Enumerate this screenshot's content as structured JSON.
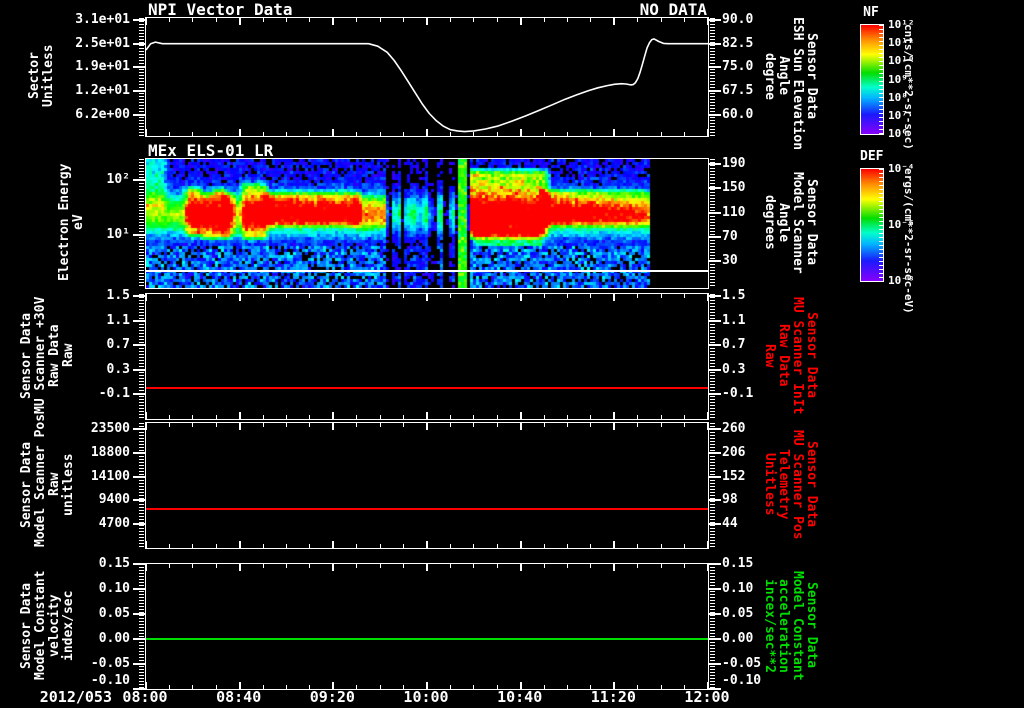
{
  "colors": {
    "background": "#000000",
    "foreground": "#ffffff",
    "red": "#ff0000",
    "green": "#00dd00",
    "rainbow_stops": [
      {
        "c": "#ff0000",
        "p": 0
      },
      {
        "c": "#ff8800",
        "p": 13
      },
      {
        "c": "#ffff00",
        "p": 27
      },
      {
        "c": "#00dd00",
        "p": 44
      },
      {
        "c": "#00ffcc",
        "p": 57
      },
      {
        "c": "#00b4ff",
        "p": 67
      },
      {
        "c": "#1a1aff",
        "p": 82
      },
      {
        "c": "#8800ff",
        "p": 100
      }
    ]
  },
  "xaxis": {
    "date_label": "2012/053",
    "t_start_min": 0,
    "t_end_min": 240,
    "major_tick_min": 40,
    "minor_tick_min": 10,
    "tick_labels": [
      "08:00",
      "08:40",
      "09:20",
      "10:00",
      "10:40",
      "11:20",
      "12:00"
    ]
  },
  "colorbars": [
    {
      "title": "NF",
      "tick_labels": [
        "10¹²",
        "10¹¹",
        "10¹⁰",
        "10⁹",
        "10⁸",
        "10⁷",
        "10⁶"
      ],
      "units": "cnts/(cm**2-sr-sec)"
    },
    {
      "title": "DEF",
      "tick_labels": [
        "10⁻⁴",
        "10⁻⁶",
        "10⁻⁸"
      ],
      "units": "ergs/(cm**2-sr-sec-eV)"
    }
  ],
  "chart_data": [
    {
      "type": "line",
      "title": "NPI Vector Data",
      "no_data_label": "NO DATA",
      "left_label_lines": [
        "Sector",
        "Unitless"
      ],
      "right_label_lines": [
        "Sensor Data",
        "ESH Sun Elevation",
        "Angle",
        "degree"
      ],
      "right_label_color": "#ffffff",
      "left_axis": {
        "min": 0.75,
        "max": 31.75,
        "ticks": [
          {
            "label": "3.1e+01",
            "v": 31.25
          },
          {
            "label": "2.5e+01",
            "v": 25
          },
          {
            "label": "1.9e+01",
            "v": 18.75
          },
          {
            "label": "1.2e+01",
            "v": 12.5
          },
          {
            "label": "6.2e+00",
            "v": 6.25
          }
        ]
      },
      "right_axis": {
        "min": 53.4,
        "max": 90.6,
        "ticks": [
          {
            "label": "90.0",
            "v": 90
          },
          {
            "label": "82.5",
            "v": 82.5
          },
          {
            "label": "75.0",
            "v": 75
          },
          {
            "label": "67.5",
            "v": 67.5
          },
          {
            "label": "60.0",
            "v": 60
          }
        ]
      },
      "series": {
        "name": "sun-elevation-angle",
        "color": "#ffffff",
        "x_unit": "minutes after 08:00",
        "y_axis": "right",
        "points": [
          [
            0,
            80.5
          ],
          [
            2,
            82.5
          ],
          [
            4,
            83.0
          ],
          [
            7,
            82.5
          ],
          [
            95,
            82.5
          ],
          [
            99,
            81.7
          ],
          [
            103,
            79.8
          ],
          [
            106,
            77.2
          ],
          [
            109,
            74.0
          ],
          [
            112,
            70.5
          ],
          [
            115,
            67.0
          ],
          [
            118,
            63.5
          ],
          [
            121,
            60.5
          ],
          [
            124,
            58.2
          ],
          [
            127,
            56.5
          ],
          [
            130,
            55.4
          ],
          [
            133,
            55.0
          ],
          [
            136,
            54.8
          ],
          [
            140,
            55.0
          ],
          [
            145,
            55.6
          ],
          [
            150,
            56.5
          ],
          [
            156,
            58.0
          ],
          [
            162,
            59.7
          ],
          [
            168,
            61.5
          ],
          [
            174,
            63.4
          ],
          [
            179,
            65.0
          ],
          [
            184,
            66.4
          ],
          [
            189,
            67.7
          ],
          [
            193,
            68.6
          ],
          [
            197,
            69.3
          ],
          [
            200,
            69.7
          ],
          [
            203,
            69.9
          ],
          [
            205,
            69.8
          ],
          [
            207,
            69.5
          ],
          [
            208,
            69.6
          ],
          [
            209,
            70.2
          ],
          [
            210,
            71.5
          ],
          [
            211,
            73.5
          ],
          [
            212,
            76.0
          ],
          [
            213,
            78.7
          ],
          [
            214,
            81.2
          ],
          [
            215,
            82.8
          ],
          [
            216,
            83.8
          ],
          [
            217,
            84.0
          ],
          [
            219,
            83.2
          ],
          [
            221,
            82.6
          ],
          [
            223,
            82.5
          ],
          [
            240,
            82.5
          ]
        ]
      }
    },
    {
      "type": "heatmap",
      "title": "MEx ELS-01 LR",
      "left_label_lines": [
        "Electron Energy",
        "eV"
      ],
      "right_label_lines": [
        "Sensor Data",
        "Model Scanner",
        "Angle",
        "degrees"
      ],
      "right_label_color": "#ffffff",
      "left_axis": {
        "scale": "log",
        "min": 1.1,
        "max": 245,
        "ticks": [
          {
            "label": "10²",
            "v": 100
          },
          {
            "label": "10¹",
            "v": 10
          }
        ]
      },
      "right_axis": {
        "min": -14,
        "max": 198,
        "ticks": [
          {
            "label": "190",
            "v": 190
          },
          {
            "label": "150",
            "v": 150
          },
          {
            "label": "110",
            "v": 110
          },
          {
            "label": "70",
            "v": 70
          },
          {
            "label": "30",
            "v": 30
          }
        ]
      },
      "white_line": {
        "v": 2.2,
        "color": "#ffffff"
      },
      "spectrogram": {
        "t_end": 215,
        "logE_top": 2.39,
        "logE_bottom": 0.04,
        "cell": 3,
        "base": {
          "center": 1.38,
          "sigma": 0.34,
          "amp": 0.58
        },
        "low_e": {
          "below": 0.78,
          "black_frac": 0.18,
          "amp": 0.22
        },
        "events": [
          {
            "t0": 0,
            "t1": 7,
            "e0": 1.55,
            "e1": 2.35,
            "amp": 0.26,
            "amp_end": 0.26
          },
          {
            "t0": 18.5,
            "t1": 22.5,
            "e0": 1.05,
            "e1": 1.8,
            "amp": 0.5,
            "amp_end": 0.5
          },
          {
            "t0": 25.5,
            "t1": 28,
            "e0": 1.0,
            "e1": 1.7,
            "amp": 0.48,
            "amp_end": 0.48
          },
          {
            "t0": 30.5,
            "t1": 33,
            "e0": 1.0,
            "e1": 1.78,
            "amp": 0.5,
            "amp_end": 0.5
          },
          {
            "t0": 34.5,
            "t1": 36.5,
            "e0": 1.02,
            "e1": 1.7,
            "amp": 0.46,
            "amp_end": 0.46
          },
          {
            "t0": 42.5,
            "t1": 50,
            "e0": 1.0,
            "e1": 1.88,
            "amp": 0.52,
            "amp_end": 0.52
          },
          {
            "t0": 52,
            "t1": 90,
            "e0": 1.24,
            "e1": 1.72,
            "amp": 0.52,
            "amp_end": 0.45
          },
          {
            "t0": 90,
            "t1": 104,
            "e0": 1.2,
            "e1": 1.65,
            "amp": 0.24,
            "amp_end": 0.2
          },
          {
            "t0": 139,
            "t1": 170,
            "e0": 1.02,
            "e1": 2.12,
            "amp": 0.62,
            "amp_end": 0.55
          },
          {
            "t0": 142,
            "t1": 168,
            "e0": 0.72,
            "e1": 1.05,
            "amp": 0.3,
            "amp_end": 0.3
          },
          {
            "t0": 170,
            "t1": 214,
            "e0": 1.24,
            "e1": 1.76,
            "amp": 0.52,
            "amp_end": 0.3
          }
        ],
        "disturbance": {
          "t0": 103,
          "t1": 138,
          "bright_t0": 133,
          "bright_t1": 136.5
        },
        "bottom_strip_logE": 0.34
      }
    },
    {
      "type": "line",
      "left_label_lines": [
        "Sensor Data",
        "MU Scanner +30V",
        "Raw Data",
        "Raw"
      ],
      "right_label_lines": [
        "Sensor Data",
        "MU Scanner InIt",
        "Raw Data",
        "Raw"
      ],
      "right_label_color": "#ff0000",
      "left_axis": {
        "min": -0.5,
        "max": 1.54,
        "ticks": [
          {
            "label": "1.5",
            "v": 1.5
          },
          {
            "label": "1.1",
            "v": 1.1
          },
          {
            "label": "0.7",
            "v": 0.7
          },
          {
            "label": "0.3",
            "v": 0.3
          },
          {
            "label": "-0.1",
            "v": -0.1
          }
        ]
      },
      "right_axis": {
        "min": -0.5,
        "max": 1.54,
        "ticks": [
          {
            "label": "1.5",
            "v": 1.5
          },
          {
            "label": "1.1",
            "v": 1.1
          },
          {
            "label": "0.7",
            "v": 0.7
          },
          {
            "label": "0.3",
            "v": 0.3
          },
          {
            "label": "-0.1",
            "v": -0.1
          }
        ]
      },
      "const_line": {
        "value": 0.0,
        "color": "#ff0000"
      }
    },
    {
      "type": "line",
      "left_label_lines": [
        "Sensor Data",
        "Model Scanner Pos",
        "Raw",
        "unitless"
      ],
      "right_label_lines": [
        "Sensor Data",
        "MU Scanner Pos",
        "Telemetry",
        "Unitless"
      ],
      "right_label_color": "#ff0000",
      "left_axis": {
        "min": 0,
        "max": 24700,
        "ticks": [
          {
            "label": "23500",
            "v": 23500
          },
          {
            "label": "18800",
            "v": 18800
          },
          {
            "label": "14100",
            "v": 14100
          },
          {
            "label": "9400",
            "v": 9400
          },
          {
            "label": "4700",
            "v": 4700
          }
        ]
      },
      "right_axis": {
        "min": -10,
        "max": 274,
        "ticks": [
          {
            "label": "260",
            "v": 260
          },
          {
            "label": "206",
            "v": 206
          },
          {
            "label": "152",
            "v": 152
          },
          {
            "label": "98",
            "v": 98
          },
          {
            "label": "44",
            "v": 44
          }
        ]
      },
      "const_line": {
        "value": 7800,
        "color": "#ff0000"
      }
    },
    {
      "type": "line",
      "left_label_lines": [
        "Sensor Data",
        "Model Constant",
        "velocity",
        "index/sec"
      ],
      "right_label_lines": [
        "Sensor Data",
        "Model Constant",
        "acceleration",
        "incex/sec**2"
      ],
      "right_label_color": "#00dd00",
      "left_axis": {
        "min": -0.1,
        "max": 0.15,
        "ticks": [
          {
            "label": "0.15",
            "v": 0.15
          },
          {
            "label": "0.10",
            "v": 0.1
          },
          {
            "label": "0.05",
            "v": 0.05
          },
          {
            "label": "0.00",
            "v": 0.0
          },
          {
            "label": "-0.05",
            "v": -0.05
          },
          {
            "label": "-0.10",
            "v": -0.1
          }
        ]
      },
      "right_axis": {
        "min": -0.1,
        "max": 0.15,
        "ticks": [
          {
            "label": "0.15",
            "v": 0.15
          },
          {
            "label": "0.10",
            "v": 0.1
          },
          {
            "label": "0.05",
            "v": 0.05
          },
          {
            "label": "0.00",
            "v": 0.0
          },
          {
            "label": "-0.05",
            "v": -0.05
          },
          {
            "label": "-0.10",
            "v": -0.1
          }
        ]
      },
      "const_line": {
        "value": 0.0,
        "color": "#00dd00"
      }
    }
  ]
}
